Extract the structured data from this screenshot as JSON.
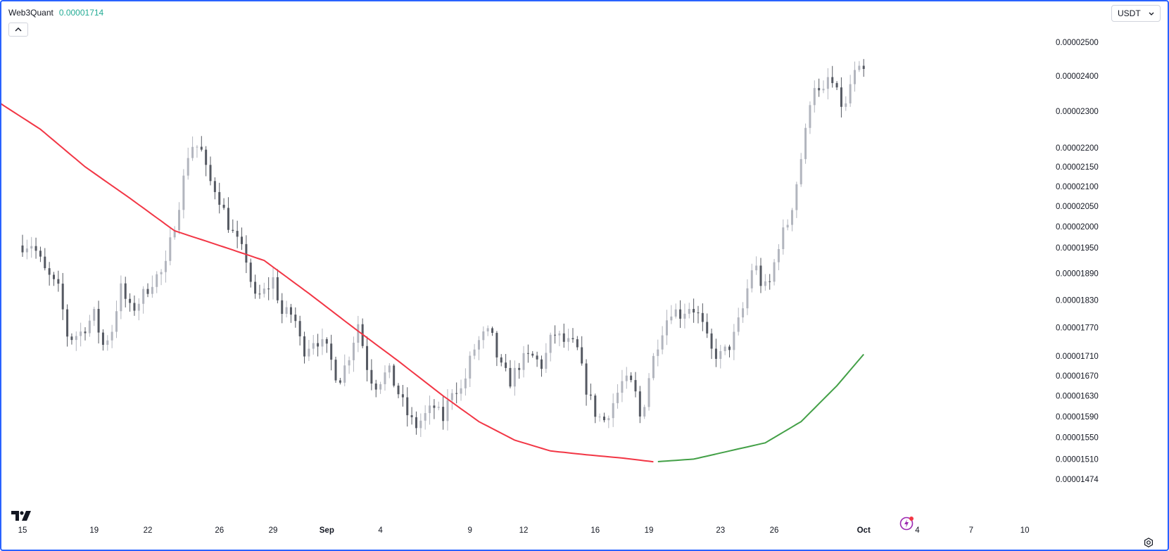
{
  "header": {
    "symbol": "Web3Quant",
    "last_value": "0.00001714",
    "currency": "USDT"
  },
  "icons": {
    "collapse": "chevron-up-icon",
    "currency_dropdown": "chevron-down-icon",
    "logo": "tradingview-logo-icon",
    "spark": "lightning-icon",
    "settings": "gear-icon"
  },
  "colors": {
    "frame": "#2962ff",
    "candle_up": "#b2b5be",
    "candle_down": "#555962",
    "ma_falling": "#f23645",
    "ma_rising": "#43a047",
    "last_value": "#22ab94"
  },
  "chart_data": {
    "type": "candlestick",
    "y_scale": "log",
    "ylim": [
      1.46e-05,
      2.56e-05
    ],
    "y_ticks": [
      "0.00002500",
      "0.00002400",
      "0.00002300",
      "0.00002200",
      "0.00002150",
      "0.00002100",
      "0.00002050",
      "0.00002000",
      "0.00001950",
      "0.00001890",
      "0.00001830",
      "0.00001770",
      "0.00001710",
      "0.00001670",
      "0.00001630",
      "0.00001590",
      "0.00001550",
      "0.00001510",
      "0.00001474"
    ],
    "x_ticks": [
      {
        "label": "15",
        "day": 15,
        "month": false
      },
      {
        "label": "19",
        "day": 19,
        "month": false
      },
      {
        "label": "22",
        "day": 22,
        "month": false
      },
      {
        "label": "26",
        "day": 26,
        "month": false
      },
      {
        "label": "29",
        "day": 29,
        "month": false
      },
      {
        "label": "Sep",
        "day": 32,
        "month": true
      },
      {
        "label": "4",
        "day": 35,
        "month": false
      },
      {
        "label": "9",
        "day": 40,
        "month": false
      },
      {
        "label": "12",
        "day": 43,
        "month": false
      },
      {
        "label": "16",
        "day": 47,
        "month": false
      },
      {
        "label": "19",
        "day": 50,
        "month": false
      },
      {
        "label": "23",
        "day": 54,
        "month": false
      },
      {
        "label": "26",
        "day": 57,
        "month": false
      },
      {
        "label": "Oct",
        "day": 62,
        "month": true
      },
      {
        "label": "4",
        "day": 65,
        "month": false
      },
      {
        "label": "7",
        "day": 68,
        "month": false
      },
      {
        "label": "10",
        "day": 71,
        "month": false
      }
    ],
    "candles_per_day": 4,
    "price_path": [
      [
        15.0,
        1.955e-05
      ],
      [
        15.8,
        1.96e-05
      ],
      [
        16.5,
        1.895e-05
      ],
      [
        17.3,
        1.85e-05
      ],
      [
        17.8,
        1.745e-05
      ],
      [
        18.5,
        1.76e-05
      ],
      [
        19.3,
        1.8e-05
      ],
      [
        19.7,
        1.73e-05
      ],
      [
        20.3,
        1.77e-05
      ],
      [
        20.7,
        1.86e-05
      ],
      [
        21.3,
        1.805e-05
      ],
      [
        21.8,
        1.83e-05
      ],
      [
        22.6,
        1.88e-05
      ],
      [
        23.2,
        1.895e-05
      ],
      [
        23.5,
        1.96e-05
      ],
      [
        24.1,
        2.08e-05
      ],
      [
        24.6,
        2.21e-05
      ],
      [
        25.2,
        2.2e-05
      ],
      [
        25.6,
        2.12e-05
      ],
      [
        26.1,
        2.09e-05
      ],
      [
        26.8,
        2e-05
      ],
      [
        27.4,
        1.95e-05
      ],
      [
        27.8,
        1.92e-05
      ],
      [
        28.2,
        1.83e-05
      ],
      [
        28.8,
        1.85e-05
      ],
      [
        29.3,
        1.88e-05
      ],
      [
        29.7,
        1.8e-05
      ],
      [
        30.4,
        1.8e-05
      ],
      [
        30.9,
        1.72e-05
      ],
      [
        31.6,
        1.75e-05
      ],
      [
        32.3,
        1.72e-05
      ],
      [
        32.9,
        1.66e-05
      ],
      [
        33.4,
        1.7e-05
      ],
      [
        34.0,
        1.78e-05
      ],
      [
        34.5,
        1.69e-05
      ],
      [
        34.9,
        1.65e-05
      ],
      [
        35.7,
        1.68e-05
      ],
      [
        36.2,
        1.64e-05
      ],
      [
        36.8,
        1.59e-05
      ],
      [
        37.2,
        1.57e-05
      ],
      [
        37.7,
        1.59e-05
      ],
      [
        38.3,
        1.61e-05
      ],
      [
        38.7,
        1.58e-05
      ],
      [
        39.3,
        1.65e-05
      ],
      [
        39.8,
        1.64e-05
      ],
      [
        40.4,
        1.72e-05
      ],
      [
        40.9,
        1.75e-05
      ],
      [
        41.4,
        1.76e-05
      ],
      [
        41.9,
        1.69e-05
      ],
      [
        42.5,
        1.66e-05
      ],
      [
        43.1,
        1.7e-05
      ],
      [
        43.7,
        1.71e-05
      ],
      [
        44.3,
        1.69e-05
      ],
      [
        44.9,
        1.76e-05
      ],
      [
        45.5,
        1.74e-05
      ],
      [
        46.2,
        1.73e-05
      ],
      [
        46.7,
        1.65e-05
      ],
      [
        47.2,
        1.6e-05
      ],
      [
        47.7,
        1.58e-05
      ],
      [
        48.3,
        1.62e-05
      ],
      [
        48.8,
        1.66e-05
      ],
      [
        49.4,
        1.65e-05
      ],
      [
        49.8,
        1.58e-05
      ],
      [
        50.3,
        1.68e-05
      ],
      [
        50.9,
        1.76e-05
      ],
      [
        51.5,
        1.81e-05
      ],
      [
        52.0,
        1.8e-05
      ],
      [
        52.6,
        1.82e-05
      ],
      [
        53.1,
        1.79e-05
      ],
      [
        53.7,
        1.72e-05
      ],
      [
        54.3,
        1.71e-05
      ],
      [
        54.9,
        1.74e-05
      ],
      [
        55.5,
        1.81e-05
      ],
      [
        56.1,
        1.92e-05
      ],
      [
        56.5,
        1.87e-05
      ],
      [
        56.9,
        1.85e-05
      ],
      [
        57.5,
        1.96e-05
      ],
      [
        58.1,
        2.02e-05
      ],
      [
        58.5,
        2.11e-05
      ],
      [
        59.0,
        2.24e-05
      ],
      [
        59.4,
        2.39e-05
      ],
      [
        59.9,
        2.33e-05
      ],
      [
        60.3,
        2.4e-05
      ],
      [
        60.8,
        2.34e-05
      ],
      [
        61.2,
        2.3e-05
      ],
      [
        61.6,
        2.4e-05
      ],
      [
        62.0,
        2.41e-05
      ]
    ],
    "ma_path": [
      [
        13.5,
        2.33e-05
      ],
      [
        16.0,
        2.25e-05
      ],
      [
        18.5,
        2.15e-05
      ],
      [
        21.0,
        2.07e-05
      ],
      [
        23.5,
        1.99e-05
      ],
      [
        26.0,
        1.955e-05
      ],
      [
        28.5,
        1.92e-05
      ],
      [
        31.0,
        1.845e-05
      ],
      [
        33.5,
        1.77e-05
      ],
      [
        36.0,
        1.7e-05
      ],
      [
        38.5,
        1.63e-05
      ],
      [
        40.5,
        1.58e-05
      ],
      [
        42.5,
        1.545e-05
      ],
      [
        44.5,
        1.525e-05
      ],
      [
        46.5,
        1.518e-05
      ],
      [
        48.5,
        1.512e-05
      ],
      [
        50.3,
        1.505e-05
      ],
      [
        52.5,
        1.51e-05
      ],
      [
        54.5,
        1.525e-05
      ],
      [
        56.5,
        1.54e-05
      ],
      [
        58.5,
        1.58e-05
      ],
      [
        60.5,
        1.65e-05
      ],
      [
        62.0,
        1.714e-05
      ]
    ],
    "ma_turn_day": 50.3
  }
}
